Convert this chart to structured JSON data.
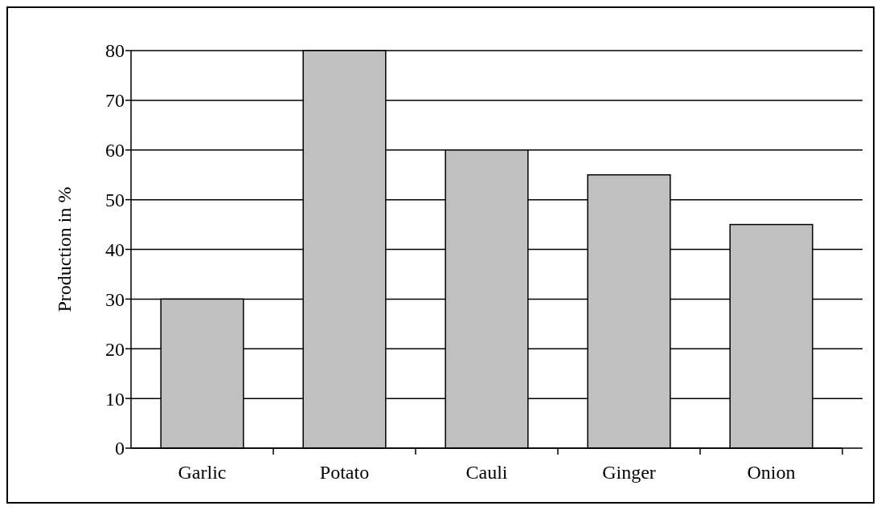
{
  "chart_data": {
    "type": "bar",
    "ylabel": "Production in %",
    "categories": [
      "Garlic",
      "Potato",
      "Cauli",
      "Ginger",
      "Onion"
    ],
    "values": [
      30,
      80,
      60,
      55,
      45
    ],
    "color": "#c0c0c0",
    "ylim": [
      0,
      80
    ],
    "yticks": [
      0,
      10,
      20,
      30,
      40,
      50,
      60,
      70,
      80
    ],
    "grid": "y"
  }
}
